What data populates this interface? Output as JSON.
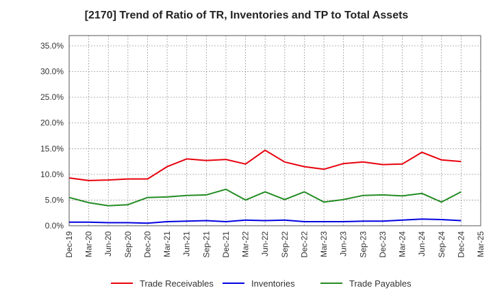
{
  "chart_data": {
    "type": "line",
    "title": "[2170]  Trend of Ratio of TR, Inventories and TP to Total Assets",
    "xlabel": "",
    "ylabel": "",
    "categories": [
      "Dec-19",
      "Mar-20",
      "Jun-20",
      "Sep-20",
      "Dec-20",
      "Mar-21",
      "Jun-21",
      "Sep-21",
      "Dec-21",
      "Mar-22",
      "Jun-22",
      "Sep-22",
      "Dec-22",
      "Mar-23",
      "Jun-23",
      "Sep-23",
      "Dec-23",
      "Mar-24",
      "Jun-24",
      "Sep-24",
      "Dec-24",
      "Mar-25"
    ],
    "ylim": [
      0,
      37
    ],
    "yticks": [
      0,
      5,
      10,
      15,
      20,
      25,
      30,
      35
    ],
    "ytick_labels": [
      "0.0%",
      "5.0%",
      "10.0%",
      "15.0%",
      "20.0%",
      "25.0%",
      "30.0%",
      "35.0%"
    ],
    "grid": true,
    "legend_position": "bottom",
    "series": [
      {
        "name": "Trade Receivables",
        "color": "#e8000b",
        "values": [
          9.3,
          8.8,
          8.9,
          9.1,
          9.1,
          11.5,
          13.0,
          12.7,
          12.9,
          12.0,
          14.7,
          12.4,
          11.5,
          11.0,
          12.1,
          12.4,
          11.9,
          12.0,
          14.3,
          12.8,
          12.5,
          null
        ]
      },
      {
        "name": "Inventories",
        "color": "#0000e0",
        "values": [
          0.7,
          0.7,
          0.6,
          0.6,
          0.5,
          0.8,
          0.9,
          1.0,
          0.8,
          1.1,
          1.0,
          1.1,
          0.8,
          0.8,
          0.8,
          0.9,
          0.9,
          1.1,
          1.3,
          1.2,
          1.0,
          null
        ]
      },
      {
        "name": "Trade Payables",
        "color": "#228b22",
        "values": [
          5.5,
          4.5,
          3.9,
          4.1,
          5.5,
          5.6,
          5.9,
          6.0,
          7.1,
          5.0,
          6.6,
          5.1,
          6.6,
          4.6,
          5.1,
          5.9,
          6.0,
          5.8,
          6.3,
          4.6,
          6.6,
          null
        ]
      }
    ]
  }
}
